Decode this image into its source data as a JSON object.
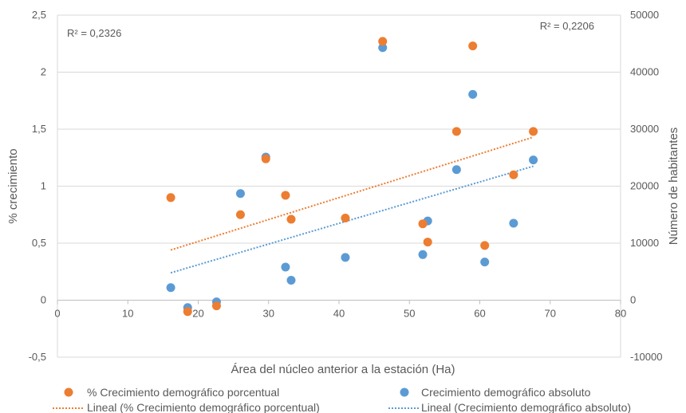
{
  "chart_data": {
    "type": "scatter",
    "xlabel": "Área del núcleo anterior a la estación (Ha)",
    "ylabel_left": "% crecimiento",
    "ylabel_right": "Número de habitantes",
    "xlim": [
      0,
      80
    ],
    "ylim_left": [
      -0.5,
      2.5
    ],
    "ylim_right": [
      -10000,
      50000
    ],
    "x_ticks": [
      0,
      10,
      20,
      30,
      40,
      50,
      60,
      70,
      80
    ],
    "y_left_ticks": [
      -0.5,
      0,
      0.5,
      1,
      1.5,
      2,
      2.5
    ],
    "y_right_ticks": [
      -10000,
      0,
      10000,
      20000,
      30000,
      40000,
      50000
    ],
    "y_left_tick_labels": [
      "-0,5",
      "0",
      "0,5",
      "1",
      "1,5",
      "2",
      "2,5"
    ],
    "y_right_tick_labels": [
      "-10000",
      "0",
      "10000",
      "20000",
      "30000",
      "40000",
      "50000"
    ],
    "x_tick_labels": [
      "0",
      "10",
      "20",
      "30",
      "40",
      "50",
      "60",
      "70",
      "80"
    ],
    "grid": "horizontal",
    "legend_position": "bottom",
    "series": [
      {
        "name": "% Crecimiento demográfico porcentual",
        "axis": "left",
        "color": "#ED7D31",
        "points": [
          [
            16.1,
            0.9
          ],
          [
            18.5,
            -0.1
          ],
          [
            22.6,
            -0.05
          ],
          [
            26.0,
            0.75
          ],
          [
            29.6,
            1.24
          ],
          [
            32.4,
            0.92
          ],
          [
            33.2,
            0.71
          ],
          [
            40.9,
            0.72
          ],
          [
            46.2,
            2.27
          ],
          [
            51.9,
            0.67
          ],
          [
            52.6,
            0.51
          ],
          [
            56.7,
            1.48
          ],
          [
            59.0,
            2.23
          ],
          [
            60.7,
            0.48
          ],
          [
            64.8,
            1.1
          ],
          [
            67.6,
            1.48
          ]
        ]
      },
      {
        "name": "Crecimiento demográfico absoluto",
        "axis": "right",
        "color": "#5B9BD5",
        "points": [
          [
            16.1,
            2200
          ],
          [
            18.5,
            -1300
          ],
          [
            22.6,
            -300
          ],
          [
            26.0,
            18700
          ],
          [
            29.6,
            25100
          ],
          [
            32.4,
            5800
          ],
          [
            33.2,
            3500
          ],
          [
            40.9,
            7500
          ],
          [
            46.2,
            44300
          ],
          [
            51.9,
            8000
          ],
          [
            52.6,
            13900
          ],
          [
            56.7,
            22900
          ],
          [
            59.0,
            36100
          ],
          [
            60.7,
            6700
          ],
          [
            64.8,
            13500
          ],
          [
            67.6,
            24600
          ]
        ]
      }
    ],
    "trendlines": [
      {
        "name": "Lineal (% Crecimiento demográfico porcentual)",
        "axis": "left",
        "color": "#ED7D31",
        "from": [
          16.1,
          0.44
        ],
        "to": [
          67.6,
          1.43
        ],
        "r2_label": "R² = 0,2326"
      },
      {
        "name": "Lineal (Crecimiento demográfico absoluto)",
        "axis": "right",
        "color": "#5B9BD5",
        "from": [
          16.1,
          4800
        ],
        "to": [
          67.6,
          23500
        ],
        "r2_label": "R² = 0,2206"
      }
    ]
  }
}
